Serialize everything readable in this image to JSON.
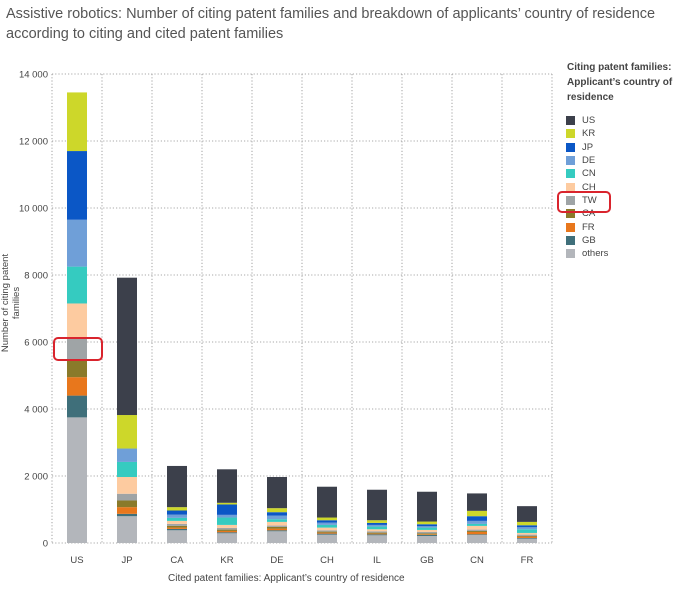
{
  "title": "Assistive robotics: Number of citing patent families and breakdown of applicants’ country of residence according to citing and cited patent families",
  "chart_data": {
    "type": "bar",
    "stacked": true,
    "xlabel": "Cited patent families: Applicant’s country of residence",
    "ylabel": "Number of citing patent families",
    "ylim": [
      0,
      14000
    ],
    "yticks": [
      0,
      2000,
      4000,
      6000,
      8000,
      10000,
      12000,
      14000
    ],
    "ytick_labels": [
      "0",
      "2 000",
      "4 000",
      "6 000",
      "8 000",
      "10 000",
      "12 000",
      "14 000"
    ],
    "grid": true,
    "legend_title": "Citing patent families: Applicant’s country of residence",
    "legend_position": "right",
    "categories": [
      "US",
      "JP",
      "CA",
      "KR",
      "DE",
      "CH",
      "IL",
      "GB",
      "CN",
      "FR"
    ],
    "series": [
      {
        "name": "others",
        "color": "#b3b6bb",
        "values": [
          3750,
          800,
          380,
          290,
          350,
          250,
          230,
          210,
          240,
          130
        ]
      },
      {
        "name": "GB",
        "color": "#3f6f7a",
        "values": [
          650,
          70,
          40,
          30,
          30,
          30,
          30,
          30,
          20,
          20
        ]
      },
      {
        "name": "FR",
        "color": "#e8771c",
        "values": [
          550,
          200,
          40,
          40,
          50,
          30,
          20,
          20,
          70,
          40
        ]
      },
      {
        "name": "CA",
        "color": "#8a7a2a",
        "values": [
          500,
          200,
          50,
          40,
          50,
          30,
          30,
          30,
          30,
          20
        ]
      },
      {
        "name": "TW",
        "color": "#9fa4a6",
        "values": [
          650,
          200,
          60,
          50,
          40,
          40,
          40,
          40,
          40,
          40
        ]
      },
      {
        "name": "CH",
        "color": "#fdcba0",
        "values": [
          1050,
          500,
          90,
          90,
          110,
          80,
          60,
          60,
          110,
          50
        ]
      },
      {
        "name": "CN",
        "color": "#35cbc0",
        "values": [
          1100,
          450,
          90,
          220,
          80,
          80,
          80,
          70,
          60,
          110
        ]
      },
      {
        "name": "DE",
        "color": "#6f9fd8",
        "values": [
          1400,
          400,
          100,
          80,
          110,
          70,
          50,
          40,
          90,
          60
        ]
      },
      {
        "name": "JP",
        "color": "#0b57c6",
        "values": [
          2050,
          0,
          120,
          310,
          100,
          70,
          60,
          60,
          140,
          60
        ]
      },
      {
        "name": "KR",
        "color": "#cdd72a",
        "values": [
          1750,
          1000,
          100,
          50,
          120,
          80,
          80,
          80,
          160,
          100
        ]
      },
      {
        "name": "US",
        "color": "#3c404b",
        "values": [
          0,
          4100,
          1230,
          1000,
          930,
          920,
          910,
          890,
          520,
          470
        ]
      }
    ],
    "legend_order": [
      "US",
      "KR",
      "JP",
      "DE",
      "CN",
      "CH",
      "TW",
      "CA",
      "FR",
      "GB",
      "others"
    ],
    "annotations": [
      {
        "type": "highlight-box",
        "color": "#d9242d",
        "target": "US bar, TW segment"
      },
      {
        "type": "highlight-box",
        "color": "#d9242d",
        "target": "legend entry TW"
      }
    ]
  }
}
